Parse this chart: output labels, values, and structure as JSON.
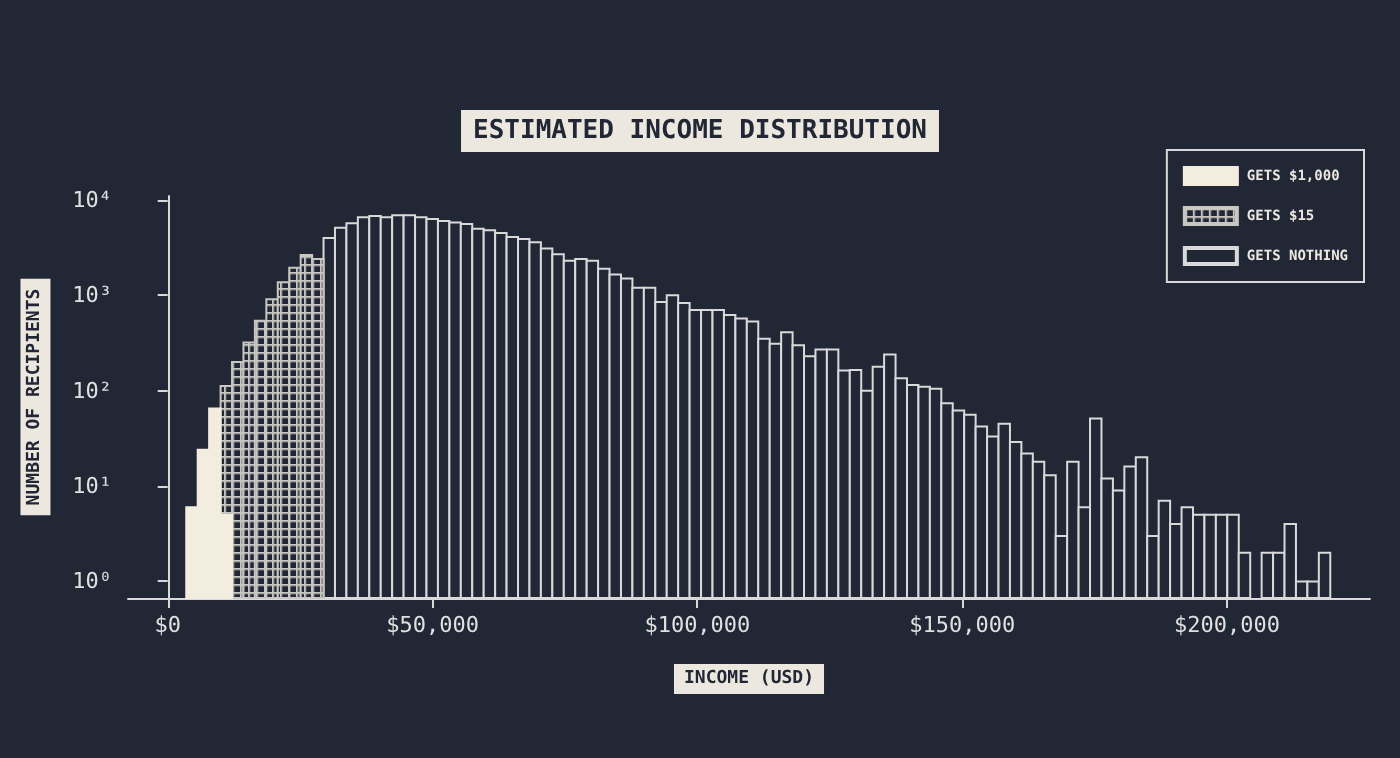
{
  "chart_data": {
    "type": "histogram",
    "title": "ESTIMATED INCOME DISTRIBUTION",
    "xlabel": "INCOME (USD)",
    "ylabel": "NUMBER OF RECIPIENTS",
    "bins": [
      3500,
      5660,
      7820,
      9980,
      12140,
      14300,
      16460,
      18620,
      20780,
      22940,
      25100,
      27260,
      29420,
      31580,
      33740,
      35900,
      38060,
      40220,
      42380,
      44540,
      46700,
      48860,
      51020,
      53180,
      55340,
      57500,
      59660,
      61820,
      63980,
      66140,
      68300,
      70460,
      72620,
      74780,
      76940,
      79100,
      81260,
      83420,
      85580,
      87740,
      89900,
      92060,
      94220,
      96380,
      98540,
      100700,
      102860,
      105020,
      107180,
      109340,
      111500,
      113660,
      115820,
      117980,
      120140,
      122300,
      124460,
      126620,
      128780,
      130940,
      133100,
      135260,
      137420,
      139580,
      141740,
      143900,
      146060,
      148220,
      150380,
      152540,
      154700,
      156860,
      159020,
      161180,
      163340,
      165500,
      167660,
      169820,
      171980,
      174140,
      176300,
      178460,
      180620,
      182780,
      184940,
      187100,
      189260,
      191420,
      193580,
      195740,
      197900,
      200060,
      202220,
      204380,
      206540,
      208700,
      210860,
      213020,
      215180,
      217340,
      219500
    ],
    "series": [
      {
        "name": "GETS $1,000",
        "color": "#f3ede0",
        "values": [
          6,
          24,
          65,
          5,
          null,
          null,
          null,
          null,
          null,
          null,
          null,
          null,
          null,
          null,
          null,
          null,
          null,
          null,
          null,
          null,
          null,
          null,
          null,
          null,
          null,
          null,
          null,
          null,
          null,
          null,
          null,
          null,
          null,
          null,
          null,
          null,
          null,
          null,
          null,
          null,
          null,
          null,
          null,
          null,
          null,
          null,
          null,
          null,
          null,
          null,
          null,
          null,
          null,
          null,
          null,
          null,
          null,
          null,
          null,
          null,
          null,
          null,
          null,
          null,
          null,
          null,
          null,
          null,
          null,
          null,
          null,
          null,
          null,
          null,
          null,
          null,
          null,
          null,
          null,
          null,
          null,
          null,
          null,
          null,
          null,
          null,
          null,
          null,
          null,
          null,
          null,
          null,
          null,
          null,
          null,
          null,
          null,
          null,
          null,
          null
        ]
      },
      {
        "name": "GETS $15",
        "color": "#c9c7c2",
        "values": [
          null,
          null,
          null,
          112,
          200,
          320,
          540,
          910,
          1370,
          1950,
          2650,
          2400,
          null,
          null,
          null,
          null,
          null,
          null,
          null,
          null,
          null,
          null,
          null,
          null,
          null,
          null,
          null,
          null,
          null,
          null,
          null,
          null,
          null,
          null,
          null,
          null,
          null,
          null,
          null,
          null,
          null,
          null,
          null,
          null,
          null,
          null,
          null,
          null,
          null,
          null,
          null,
          null,
          null,
          null,
          null,
          null,
          null,
          null,
          null,
          null,
          null,
          null,
          null,
          null,
          null,
          null,
          null,
          null,
          null,
          null,
          null,
          null,
          null,
          null,
          null,
          null,
          null,
          null,
          null,
          null,
          null,
          null,
          null,
          null,
          null,
          null,
          null,
          null,
          null,
          null,
          null,
          null,
          null,
          null,
          null,
          null,
          null,
          null,
          null,
          null
        ]
      },
      {
        "name": "GETS NOTHING",
        "color": "#d9d9d9",
        "values": [
          null,
          null,
          null,
          null,
          null,
          null,
          null,
          null,
          null,
          null,
          null,
          null,
          3980,
          5100,
          5700,
          6600,
          6800,
          6600,
          6900,
          6900,
          6600,
          6300,
          6000,
          5800,
          5600,
          5000,
          4800,
          4500,
          4100,
          3900,
          3600,
          3100,
          2700,
          2300,
          2400,
          2300,
          1900,
          1650,
          1500,
          1200,
          1200,
          850,
          1000,
          830,
          700,
          700,
          700,
          620,
          570,
          530,
          350,
          310,
          410,
          300,
          230,
          270,
          270,
          163,
          165,
          100,
          178,
          240,
          135,
          115,
          110,
          105,
          74,
          62,
          56,
          42,
          33,
          45,
          29,
          22,
          18,
          13,
          3,
          18,
          6,
          51,
          12,
          9,
          16,
          20,
          3,
          7,
          4,
          6,
          5,
          5,
          5,
          5,
          2,
          null,
          2,
          2,
          4,
          1,
          1,
          2
        ]
      }
    ],
    "xlim": [
      -7500,
      227000
    ],
    "xticks": [
      {
        "value": 0,
        "label": "$0"
      },
      {
        "value": 50000,
        "label": "$50,000"
      },
      {
        "value": 100000,
        "label": "$100,000"
      },
      {
        "value": 150000,
        "label": "$150,000"
      },
      {
        "value": 200000,
        "label": "$200,000"
      }
    ],
    "ylim": [
      0.67,
      11000
    ],
    "yticks": [
      {
        "value": 1,
        "label": "10⁰"
      },
      {
        "value": 10,
        "label": "10¹"
      },
      {
        "value": 100,
        "label": "10²"
      },
      {
        "value": 1000,
        "label": "10³"
      },
      {
        "value": 10000,
        "label": "10⁴"
      }
    ],
    "log": "y",
    "grid": false,
    "legend": "top right"
  }
}
